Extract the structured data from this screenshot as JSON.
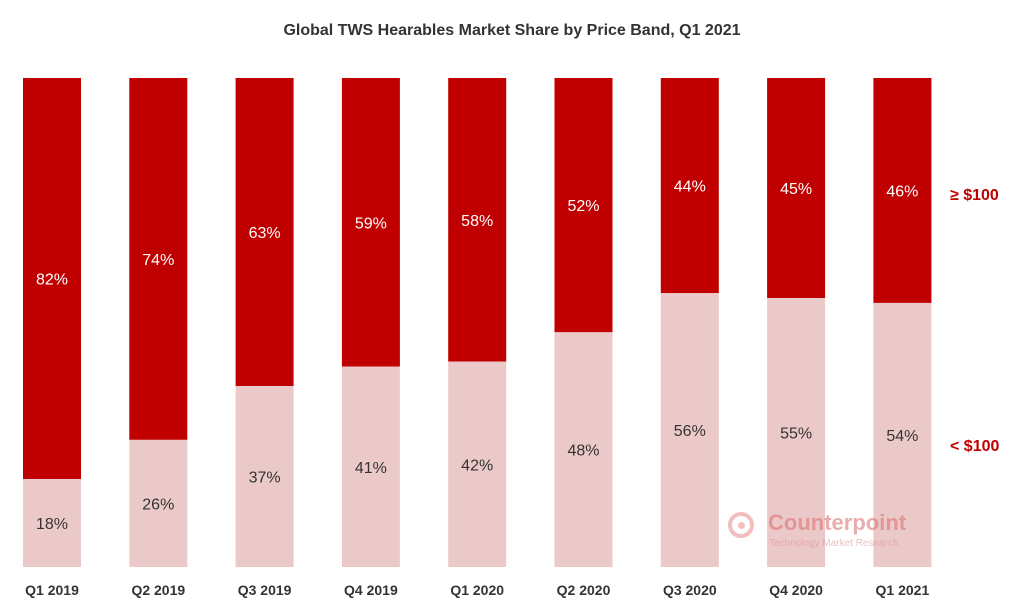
{
  "title": "Global TWS Hearables Market Share by Price Band, Q1 2021",
  "colors": {
    "above_100": "#c00000",
    "below_100": "#ecc9c9",
    "label_on_dark": "#ffffff",
    "label_on_light": "#333333"
  },
  "watermark": {
    "name": "Counterpoint",
    "subtitle": "Technology Market Research"
  },
  "chart_data": {
    "type": "bar",
    "stacked": true,
    "title": "Global TWS Hearables Market Share by Price Band, Q1 2021",
    "categories": [
      "Q1 2019",
      "Q2 2019",
      "Q3 2019",
      "Q4 2019",
      "Q1 2020",
      "Q2 2020",
      "Q3 2020",
      "Q4 2020",
      "Q1 2021"
    ],
    "series": [
      {
        "name": "< $100",
        "values": [
          18,
          26,
          37,
          41,
          42,
          48,
          56,
          55,
          54
        ],
        "labels": [
          "18%",
          "26%",
          "37%",
          "41%",
          "42%",
          "48%",
          "56%",
          "55%",
          "54%"
        ]
      },
      {
        "name": "≥ $100",
        "values": [
          82,
          74,
          63,
          59,
          58,
          52,
          44,
          45,
          46
        ],
        "labels": [
          "82%",
          "74%",
          "63%",
          "59%",
          "58%",
          "52%",
          "44%",
          "45%",
          "46%"
        ]
      }
    ],
    "ylim": [
      0,
      100
    ],
    "grid": false,
    "legend": "right"
  }
}
